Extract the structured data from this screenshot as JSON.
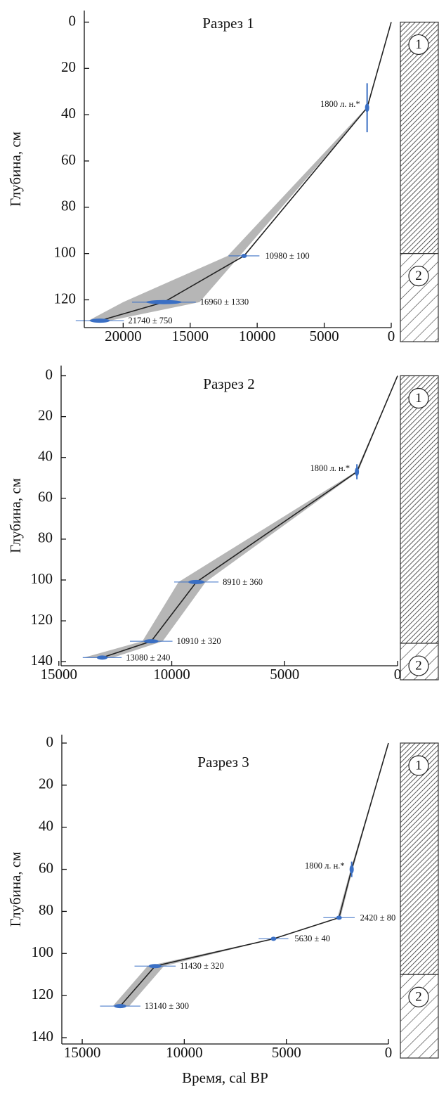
{
  "chart_data": [
    {
      "type": "age-depth",
      "title": "Разрез 1",
      "y_label": "Глубина, см",
      "xlim": [
        22900,
        0
      ],
      "ylim": [
        132,
        -5
      ],
      "xticks": [
        20000,
        15000,
        10000,
        5000,
        0
      ],
      "yticks": [
        0,
        20,
        40,
        60,
        80,
        100,
        120
      ],
      "model": {
        "age": [
          0,
          1800,
          10980,
          16960,
          21740
        ],
        "depth": [
          0,
          37,
          101,
          121,
          129
        ],
        "color": "#222222"
      },
      "envelope": {
        "depth": [
          0,
          37,
          101,
          121,
          129
        ],
        "age_min": [
          0,
          1750,
          11300,
          14300,
          21000
        ],
        "age_max": [
          0,
          1850,
          12200,
          20000,
          22600
        ],
        "color": "#a9a9a9"
      },
      "dates": [
        {
          "age": 1800,
          "depth": 37,
          "depth_error": 10,
          "label": "1800 л. н.*"
        },
        {
          "age": 10980,
          "depth": 101,
          "age_error": 100,
          "label": "10980 ± 100"
        },
        {
          "age": 16960,
          "depth": 121,
          "age_error": 1330,
          "label": "16960 ± 1330"
        },
        {
          "age": 21740,
          "depth": 129,
          "age_error": 750,
          "label": "21740 ± 750"
        }
      ],
      "date_color": "#3a6fc4",
      "units": [
        {
          "label": "1",
          "top": 0
        },
        {
          "label": "2",
          "top": 100
        }
      ]
    },
    {
      "type": "age-depth",
      "title": "Разрез 2",
      "y_label": "Глубина, см",
      "xlim": [
        14900,
        0
      ],
      "ylim": [
        142,
        -5
      ],
      "xticks": [
        15000,
        10000,
        5000,
        0
      ],
      "yticks": [
        0,
        20,
        40,
        60,
        80,
        100,
        120,
        140
      ],
      "model": {
        "age": [
          0,
          1800,
          8910,
          10910,
          13080
        ],
        "depth": [
          0,
          47,
          101,
          130,
          138
        ],
        "color": "#222222"
      },
      "envelope": {
        "depth": [
          0,
          47,
          101,
          130,
          138
        ],
        "age_min": [
          0,
          1750,
          8500,
          10400,
          12600
        ],
        "age_max": [
          0,
          1850,
          9700,
          11300,
          13900
        ],
        "color": "#a9a9a9"
      },
      "dates": [
        {
          "age": 1800,
          "depth": 47,
          "depth_error": 3,
          "label": "1800 л. н.*"
        },
        {
          "age": 8910,
          "depth": 101,
          "age_error": 360,
          "label": "8910 ± 360"
        },
        {
          "age": 10910,
          "depth": 130,
          "age_error": 320,
          "label": "10910 ± 320"
        },
        {
          "age": 13080,
          "depth": 138,
          "age_error": 240,
          "label": "13080 ± 240"
        }
      ],
      "date_color": "#3a6fc4",
      "units": [
        {
          "label": "1",
          "top": 0
        },
        {
          "label": "2",
          "top": 131
        }
      ]
    },
    {
      "type": "age-depth",
      "title": "Разрез 3",
      "y_label": "Глубина, см",
      "x_label": "Время, cal BP",
      "xlim": [
        16000,
        0
      ],
      "ylim": [
        143,
        -4
      ],
      "xticks": [
        15000,
        10000,
        5000,
        0
      ],
      "yticks": [
        0,
        20,
        40,
        60,
        80,
        100,
        120,
        140
      ],
      "model": {
        "age": [
          0,
          1800,
          2420,
          5630,
          11430,
          13140
        ],
        "depth": [
          0,
          60,
          83,
          93,
          106,
          125
        ],
        "color": "#222222"
      },
      "envelope": {
        "depth": [
          0,
          60,
          83,
          93,
          106,
          125
        ],
        "age_min": [
          0,
          1750,
          2350,
          5580,
          11000,
          12700
        ],
        "age_max": [
          0,
          1850,
          2500,
          5680,
          11800,
          13500
        ],
        "color": "#a9a9a9"
      },
      "dates": [
        {
          "age": 1800,
          "depth": 60,
          "depth_error": 3,
          "label": "1800 л. н.*"
        },
        {
          "age": 2420,
          "depth": 83,
          "age_error": 80,
          "label": "2420 ± 80"
        },
        {
          "age": 5630,
          "depth": 93,
          "age_error": 40,
          "label": "5630 ± 40"
        },
        {
          "age": 11430,
          "depth": 106,
          "age_error": 320,
          "label": "11430 ± 320"
        },
        {
          "age": 13140,
          "depth": 125,
          "age_error": 300,
          "label": "13140 ± 300"
        }
      ],
      "date_color": "#3a6fc4",
      "units": [
        {
          "label": "1",
          "top": 0
        },
        {
          "label": "2",
          "top": 110
        }
      ]
    }
  ]
}
